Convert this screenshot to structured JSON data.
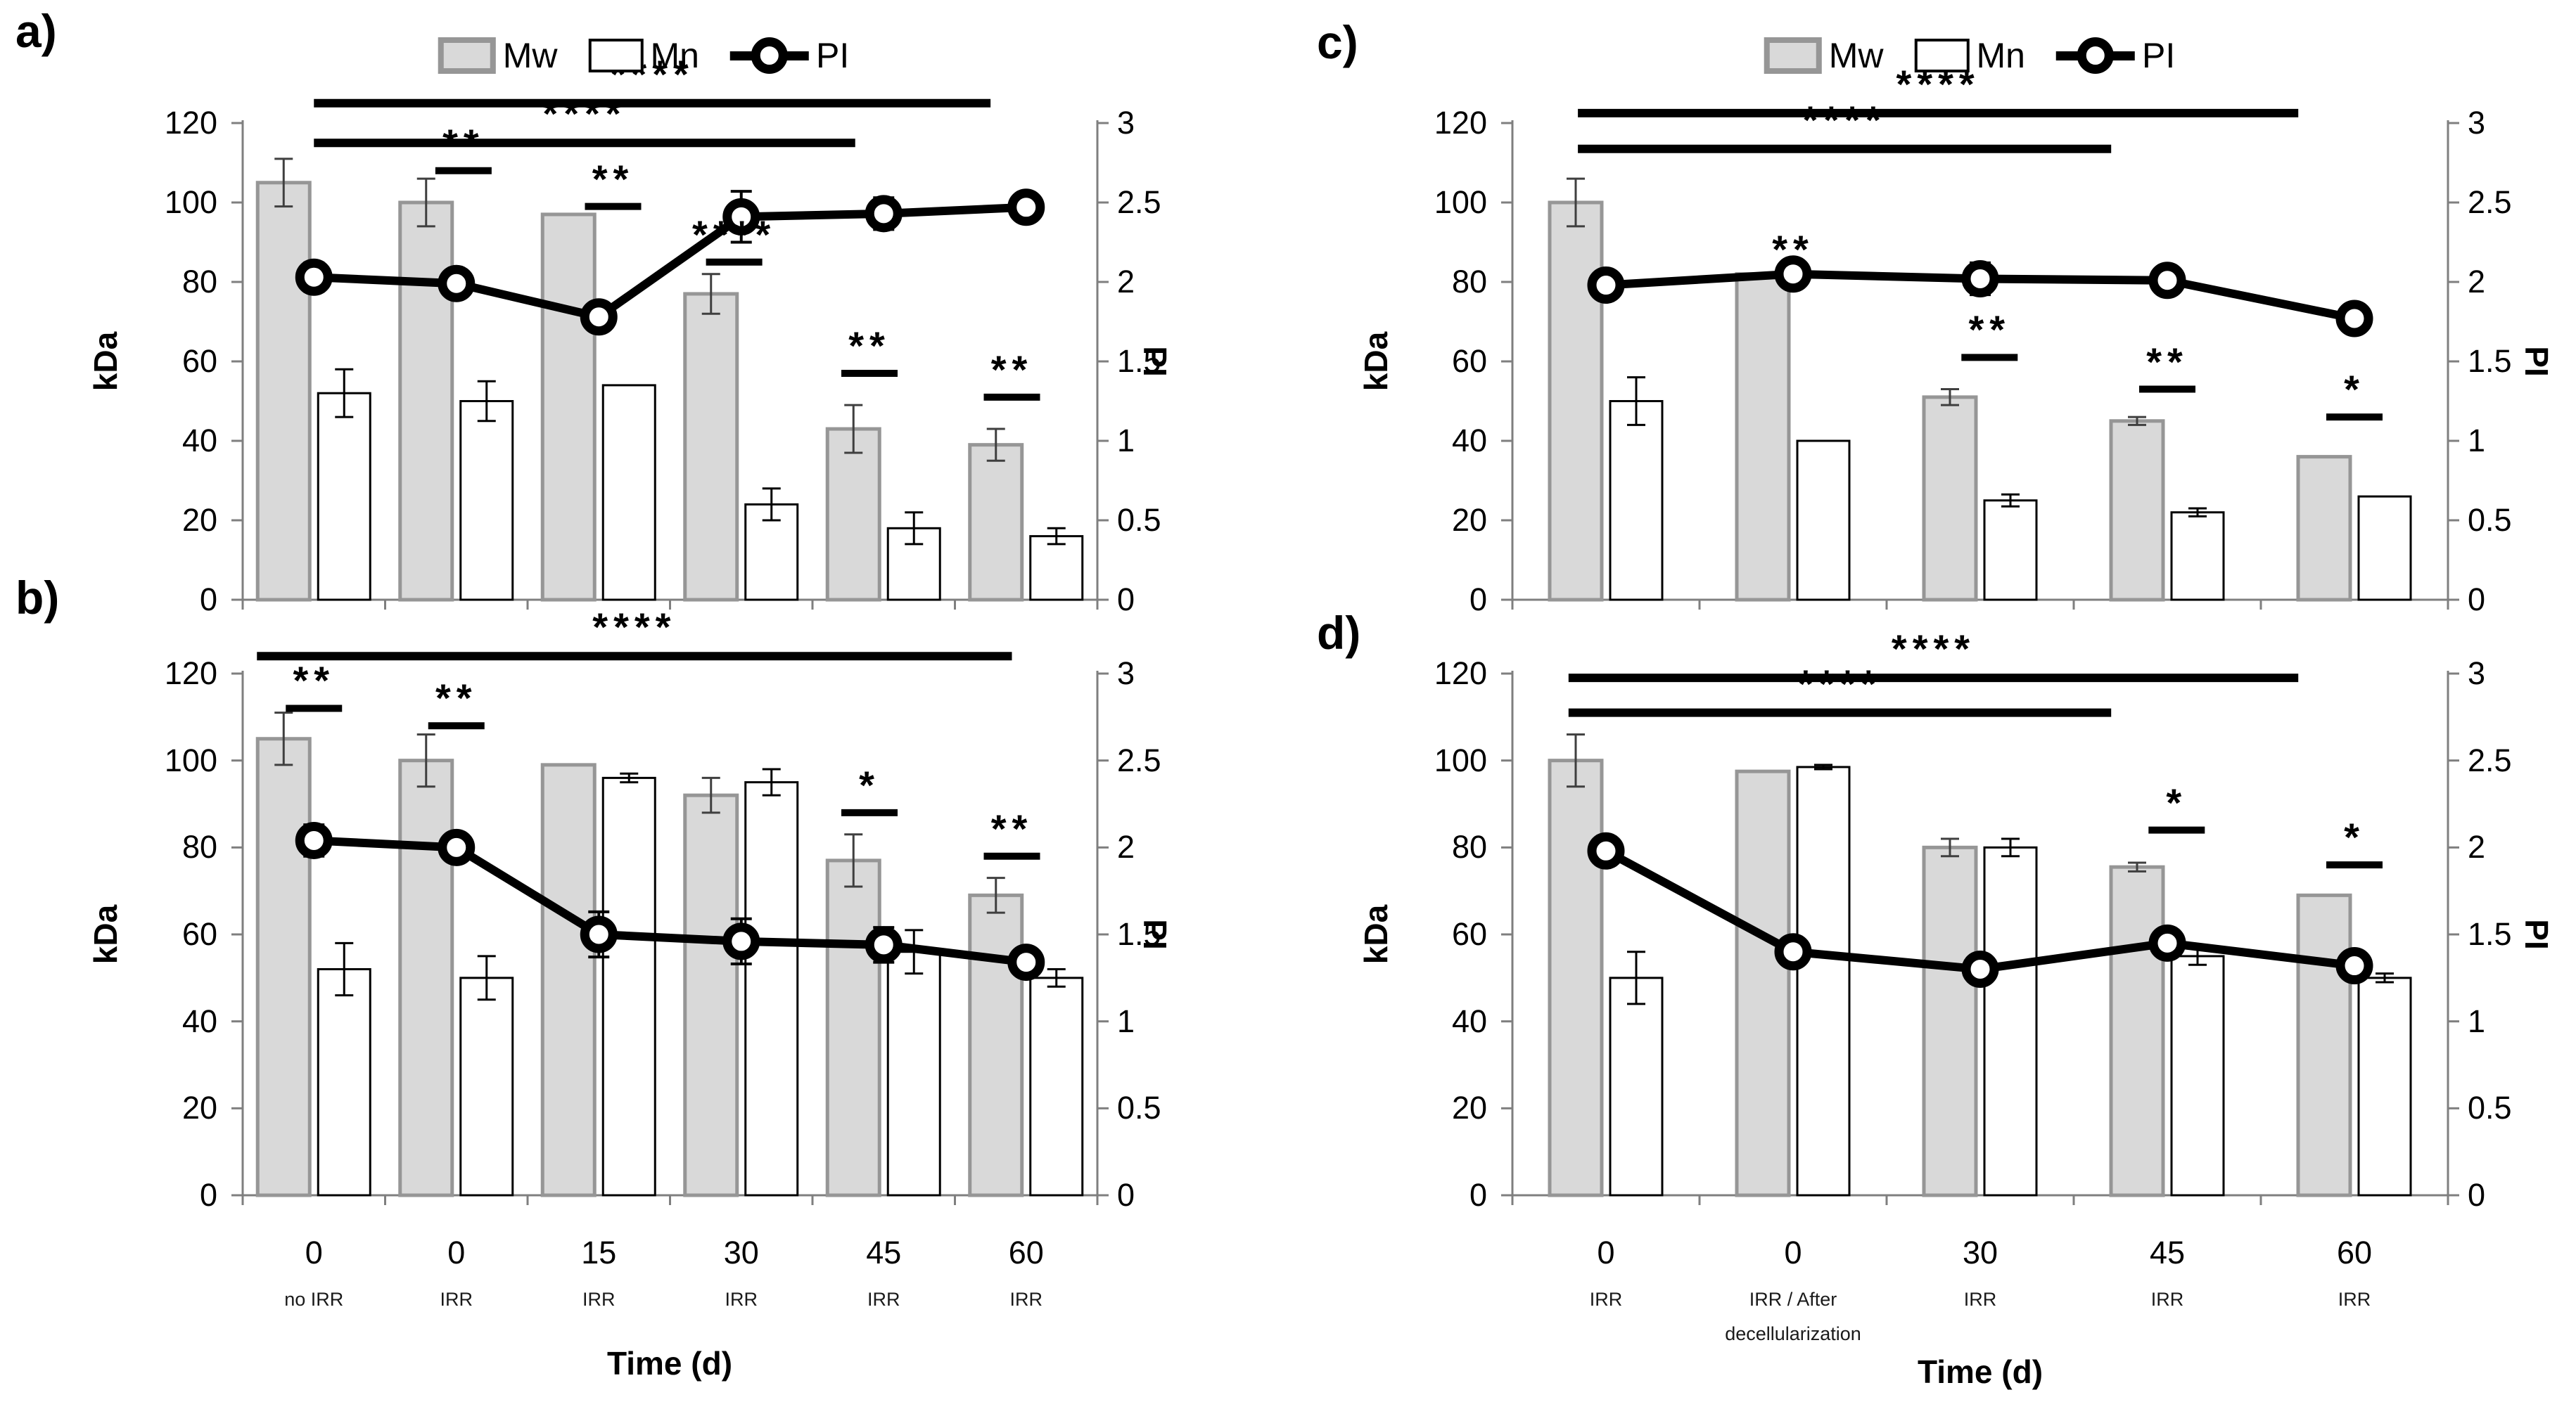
{
  "panel_letters": [
    "a)",
    "b)",
    "c)",
    "d)"
  ],
  "legend": {
    "mw": "Mw",
    "mn": "Mn",
    "pi": "PI"
  },
  "axes": {
    "left_title": "kDa",
    "right_title": "PI",
    "x_title": "Time (d)",
    "left_ticks": [
      "120",
      "100",
      "80",
      "60",
      "40",
      "20",
      "0"
    ],
    "right_ticks": [
      "3",
      "2.5",
      "2",
      "1.5",
      "1",
      "0.5",
      "0"
    ]
  },
  "colors": {
    "mw_fill": "#d9d9d9",
    "mw_border": "#969696",
    "mn_fill": "#ffffff",
    "mn_border": "#000000",
    "line": "#000000",
    "axis": "#7f7f7f",
    "error": "#3f3f3f"
  },
  "chart_data": [
    {
      "panel": "a)",
      "type": "bar+line",
      "n_groups": 6,
      "has_legend": true,
      "categories": [],
      "category_sub": [],
      "x_title": null,
      "left_axis_title": "kDa",
      "right_axis_title": "PI",
      "ylim_left": [
        0,
        120
      ],
      "ylim_right": [
        0,
        3
      ],
      "series": [
        {
          "name": "Mw",
          "values": [
            105,
            100,
            97,
            77,
            43,
            39
          ],
          "errors": [
            6,
            6,
            0,
            5,
            6,
            4
          ]
        },
        {
          "name": "Mn",
          "values": [
            52,
            50,
            54,
            24,
            18,
            16
          ],
          "errors": [
            6,
            5,
            0,
            4,
            4,
            2
          ]
        }
      ],
      "line_series": {
        "name": "PI",
        "axis": "right",
        "values": [
          2.03,
          1.99,
          1.78,
          2.41,
          2.43,
          2.47
        ],
        "errors": [
          0.09,
          0,
          0,
          0.16,
          0.1,
          0.05
        ]
      },
      "significance": [
        {
          "label": "****",
          "from": 0,
          "to": 4.75,
          "y": 125
        },
        {
          "label": "****",
          "from": 0,
          "to": 3.8,
          "y": 115
        },
        {
          "label": "**",
          "g": 1.05,
          "y": 108
        },
        {
          "label": "**",
          "g": 2.1,
          "y": 99
        },
        {
          "label": "****",
          "g": 2.95,
          "y": 85
        },
        {
          "label": "**",
          "g": 3.9,
          "y": 57
        },
        {
          "label": "**",
          "g": 4.9,
          "y": 51
        }
      ]
    },
    {
      "panel": "b)",
      "type": "bar+line",
      "n_groups": 6,
      "has_legend": false,
      "categories": [
        "0",
        "0",
        "15",
        "30",
        "45",
        "60"
      ],
      "category_sub": [
        "no IRR",
        "IRR",
        "IRR",
        "IRR",
        "IRR",
        "IRR"
      ],
      "x_title": "Time (d)",
      "left_axis_title": "kDa",
      "right_axis_title": "PI",
      "ylim_left": [
        0,
        120
      ],
      "ylim_right": [
        0,
        3
      ],
      "series": [
        {
          "name": "Mw",
          "values": [
            105,
            100,
            99,
            92,
            77,
            69
          ],
          "errors": [
            6,
            6,
            0,
            4,
            6,
            4
          ]
        },
        {
          "name": "Mn",
          "values": [
            52,
            50,
            96,
            95,
            56,
            50
          ],
          "errors": [
            6,
            5,
            1,
            3,
            5,
            2
          ]
        }
      ],
      "line_series": {
        "name": "PI",
        "axis": "right",
        "values": [
          2.04,
          2.0,
          1.5,
          1.46,
          1.44,
          1.34
        ],
        "errors": [
          0.09,
          0.08,
          0.13,
          0.13,
          0.1,
          0.04
        ]
      },
      "significance": [
        {
          "label": "****",
          "from": -0.4,
          "to": 4.9,
          "y": 124
        },
        {
          "label": "**",
          "g": 0,
          "y": 112
        },
        {
          "label": "**",
          "g": 1,
          "y": 108
        },
        {
          "label": "*",
          "g": 3.9,
          "y": 88
        },
        {
          "label": "**",
          "g": 4.9,
          "y": 78
        }
      ]
    },
    {
      "panel": "c)",
      "type": "bar+line",
      "n_groups": 5,
      "has_legend": true,
      "categories": [],
      "category_sub": [],
      "x_title": null,
      "left_axis_title": "kDa",
      "right_axis_title": "PI",
      "ylim_left": [
        0,
        120
      ],
      "ylim_right": [
        0,
        3
      ],
      "series": [
        {
          "name": "Mw",
          "values": [
            100,
            82,
            51,
            45,
            36
          ],
          "errors": [
            6,
            0,
            2,
            1,
            0
          ]
        },
        {
          "name": "Mn",
          "values": [
            50,
            40,
            25,
            22,
            26
          ],
          "errors": [
            6,
            0,
            1.5,
            1,
            0
          ]
        }
      ],
      "line_series": {
        "name": "PI",
        "axis": "right",
        "values": [
          1.98,
          2.05,
          2.02,
          2.01,
          1.77
        ],
        "errors": [
          0.05,
          0,
          0.1,
          0.04,
          0
        ]
      },
      "significance": [
        {
          "label": "****",
          "from": -0.15,
          "to": 3.7,
          "y": 122.5
        },
        {
          "label": "****",
          "from": -0.15,
          "to": 2.7,
          "y": 113.5
        },
        {
          "label": "**",
          "g": 1,
          "y": 88,
          "line": false
        },
        {
          "label": "**",
          "g": 2.05,
          "y": 61
        },
        {
          "label": "**",
          "g": 3,
          "y": 53
        },
        {
          "label": "*",
          "g": 4,
          "y": 46
        }
      ]
    },
    {
      "panel": "d)",
      "type": "bar+line",
      "n_groups": 5,
      "has_legend": false,
      "categories": [
        "0",
        "0",
        "30",
        "45",
        "60"
      ],
      "category_sub": [
        "IRR",
        "IRR / After decellularization",
        "IRR",
        "IRR",
        "IRR"
      ],
      "x_title": "Time (d)",
      "left_axis_title": "kDa",
      "right_axis_title": "PI",
      "ylim_left": [
        0,
        120
      ],
      "ylim_right": [
        0,
        3
      ],
      "series": [
        {
          "name": "Mw",
          "values": [
            100,
            97.5,
            80,
            75.5,
            69
          ],
          "errors": [
            6,
            0,
            2,
            1,
            0
          ]
        },
        {
          "name": "Mn",
          "values": [
            50,
            98.5,
            80,
            55,
            50
          ],
          "errors": [
            6,
            0.5,
            2,
            2,
            1
          ]
        }
      ],
      "line_series": {
        "name": "PI",
        "axis": "right",
        "values": [
          1.98,
          1.4,
          1.3,
          1.45,
          1.32
        ],
        "errors": [
          0.07,
          0,
          0.08,
          0,
          0
        ]
      },
      "significance": [
        {
          "label": "****",
          "from": -0.2,
          "to": 3.7,
          "y": 119
        },
        {
          "label": "****",
          "from": -0.2,
          "to": 2.7,
          "y": 111
        },
        {
          "label": "*",
          "g": 3.05,
          "y": 84
        },
        {
          "label": "*",
          "g": 4,
          "y": 76
        }
      ]
    }
  ]
}
